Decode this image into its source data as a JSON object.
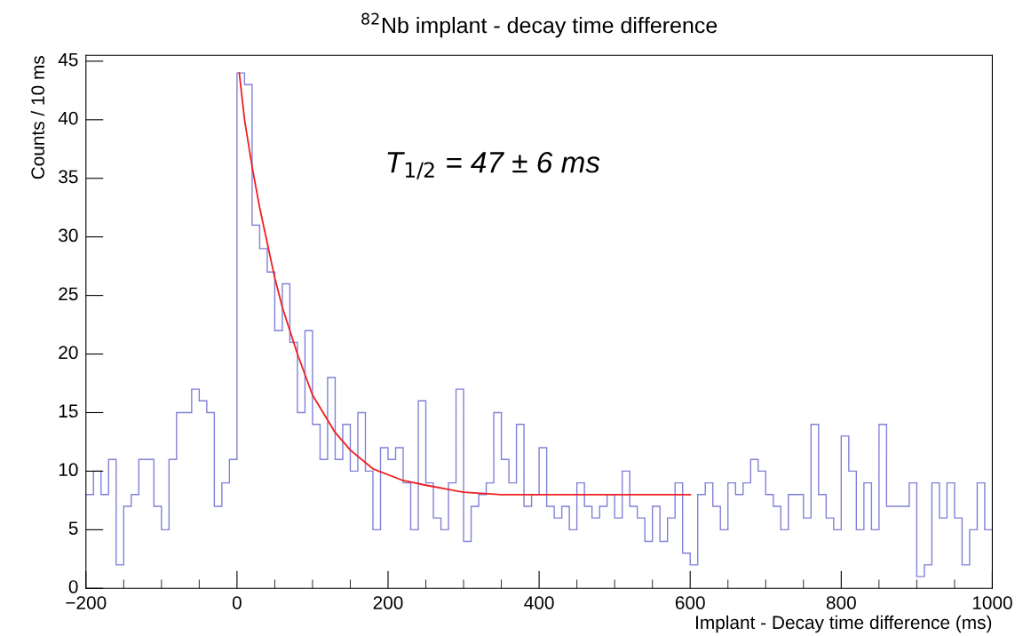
{
  "chart_data": {
    "type": "histogram",
    "title": "$^{82}$Nb implant - decay time difference",
    "xlabel": "Implant - Decay time difference (ms)",
    "ylabel": "Counts / 10 ms",
    "annotations": [
      "T$_{1/2}$ = 47 ± 6 ms"
    ],
    "bins": [
      -200,
      -190,
      -180,
      -170,
      -160,
      -150,
      -140,
      -130,
      -120,
      -110,
      -100,
      -90,
      -80,
      -70,
      -60,
      -50,
      -40,
      -30,
      -20,
      -10,
      0,
      10,
      20,
      30,
      40,
      50,
      60,
      70,
      80,
      90,
      100,
      110,
      120,
      130,
      140,
      150,
      160,
      170,
      180,
      190,
      200,
      210,
      220,
      230,
      240,
      250,
      260,
      270,
      280,
      290,
      300,
      310,
      320,
      330,
      340,
      350,
      360,
      370,
      380,
      390,
      400,
      410,
      420,
      430,
      440,
      450,
      460,
      470,
      480,
      490,
      500,
      510,
      520,
      530,
      540,
      550,
      560,
      570,
      580,
      590,
      600,
      610,
      620,
      630,
      640,
      650,
      660,
      670,
      680,
      690,
      700,
      710,
      720,
      730,
      740,
      750,
      760,
      770,
      780,
      790,
      800,
      810,
      820,
      830,
      840,
      850,
      860,
      870,
      880,
      890,
      900,
      910,
      920,
      930,
      940,
      950,
      960,
      970,
      980,
      990,
      1000
    ],
    "values": [
      8,
      10,
      8,
      11,
      2,
      7,
      8,
      11,
      11,
      7,
      5,
      11,
      15,
      15,
      17,
      16,
      15,
      7,
      9,
      11,
      44,
      43,
      31,
      29,
      27,
      22,
      26,
      21,
      15,
      22,
      14,
      11,
      18,
      11,
      14,
      10,
      15,
      10,
      5,
      12,
      11,
      12,
      9,
      5,
      16,
      9,
      6,
      5,
      9,
      17,
      4,
      7,
      8,
      9,
      15,
      11,
      9,
      14,
      7,
      8,
      12,
      7,
      6,
      7,
      5,
      9,
      7,
      6,
      7,
      8,
      6,
      10,
      7,
      6,
      4,
      7,
      4,
      6,
      9,
      3,
      2,
      8,
      9,
      7,
      5,
      9,
      8,
      9,
      11,
      10,
      8,
      7,
      5,
      8,
      8,
      6,
      14,
      8,
      6,
      5,
      13,
      10,
      5,
      9,
      5,
      14,
      7,
      7,
      7,
      9,
      1,
      2,
      9,
      6,
      9,
      6,
      2,
      5,
      9,
      5
    ],
    "color": "#8080d8",
    "series": [
      {
        "type": "line",
        "color": "#ee2020",
        "x": [
          3,
          10,
          20,
          30,
          40,
          50,
          60,
          70,
          80,
          100,
          130,
          150,
          180,
          220,
          250,
          300,
          350,
          400,
          500,
          600
        ],
        "values": [
          44,
          40,
          36,
          32.5,
          29.5,
          26.5,
          24,
          22,
          20,
          16.5,
          13.3,
          11.8,
          10.2,
          9.2,
          8.8,
          8.2,
          8.0,
          8.0,
          8.0,
          8.0
        ]
      }
    ],
    "xlim": [
      -200,
      1000
    ],
    "xticks": [
      {
        "value": -200,
        "label": "−200"
      },
      0,
      200,
      400,
      600,
      800,
      1000
    ],
    "ylim": [
      0,
      45.5
    ],
    "yticks": [
      0,
      5,
      10,
      15,
      20,
      25,
      30,
      35,
      40,
      45
    ]
  }
}
